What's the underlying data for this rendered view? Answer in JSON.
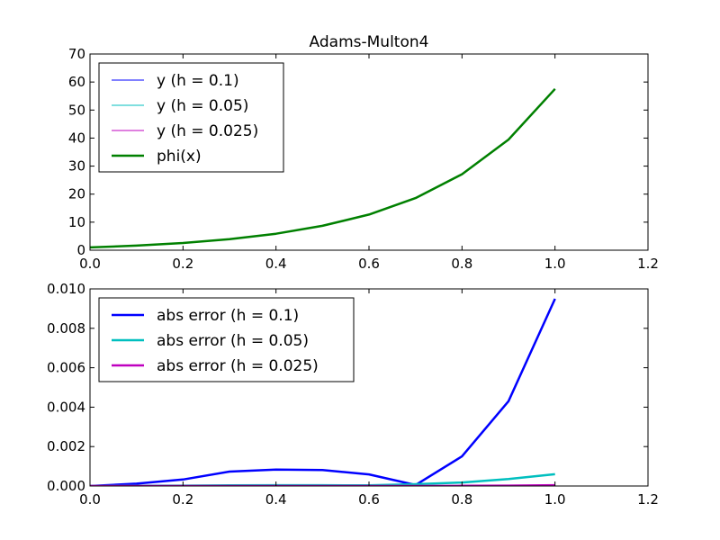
{
  "chart_data": [
    {
      "type": "line",
      "title": "Adams-Multon4",
      "xlabel": "",
      "ylabel": "",
      "xlim": [
        0.0,
        1.2
      ],
      "ylim": [
        0,
        70
      ],
      "xticks": [
        "0.0",
        "0.2",
        "0.4",
        "0.6",
        "0.8",
        "1.0",
        "1.2"
      ],
      "yticks": [
        "0",
        "10",
        "20",
        "30",
        "40",
        "50",
        "60",
        "70"
      ],
      "grid": false,
      "legend_position": "top-left",
      "series": [
        {
          "name": "y (h = 0.1)",
          "color": "#0000ff",
          "line_width": "thin",
          "x": [
            0.0,
            0.1,
            0.2,
            0.3,
            0.4,
            0.5,
            0.6,
            0.7,
            0.8,
            0.9,
            1.0
          ],
          "y": [
            1.0,
            1.63,
            2.56,
            3.93,
            5.88,
            8.69,
            12.73,
            18.58,
            27.09,
            39.47,
            57.53
          ]
        },
        {
          "name": "y (h = 0.05)",
          "color": "#00bfbf",
          "line_width": "thin",
          "x": [
            0.0,
            0.1,
            0.2,
            0.3,
            0.4,
            0.5,
            0.6,
            0.7,
            0.8,
            0.9,
            1.0
          ],
          "y": [
            1.0,
            1.63,
            2.56,
            3.93,
            5.88,
            8.69,
            12.73,
            18.58,
            27.09,
            39.47,
            57.53
          ]
        },
        {
          "name": "y (h = 0.025)",
          "color": "#bf00bf",
          "line_width": "thin",
          "x": [
            0.0,
            0.1,
            0.2,
            0.3,
            0.4,
            0.5,
            0.6,
            0.7,
            0.8,
            0.9,
            1.0
          ],
          "y": [
            1.0,
            1.63,
            2.56,
            3.93,
            5.88,
            8.69,
            12.73,
            18.58,
            27.09,
            39.47,
            57.53
          ]
        },
        {
          "name": "phi(x)",
          "color": "#008000",
          "line_width": "thick",
          "x": [
            0.0,
            0.1,
            0.2,
            0.3,
            0.4,
            0.5,
            0.6,
            0.7,
            0.8,
            0.9,
            1.0
          ],
          "y": [
            1.0,
            1.63,
            2.56,
            3.93,
            5.88,
            8.69,
            12.73,
            18.58,
            27.09,
            39.47,
            57.53
          ]
        }
      ]
    },
    {
      "type": "line",
      "title": "",
      "xlabel": "",
      "ylabel": "",
      "xlim": [
        0.0,
        1.2
      ],
      "ylim": [
        0.0,
        0.01
      ],
      "xticks": [
        "0.0",
        "0.2",
        "0.4",
        "0.6",
        "0.8",
        "1.0",
        "1.2"
      ],
      "yticks": [
        "0.000",
        "0.002",
        "0.004",
        "0.006",
        "0.008",
        "0.010"
      ],
      "grid": false,
      "legend_position": "top-left",
      "series": [
        {
          "name": "abs error (h = 0.1)",
          "color": "#0000ff",
          "line_width": "thick",
          "x": [
            0.0,
            0.1,
            0.2,
            0.3,
            0.4,
            0.5,
            0.6,
            0.7,
            0.8,
            0.9,
            1.0
          ],
          "y": [
            0.0,
            0.00012,
            0.00033,
            0.00073,
            0.00083,
            0.00081,
            0.00059,
            5e-05,
            0.0015,
            0.0043,
            0.0095
          ]
        },
        {
          "name": "abs error (h = 0.05)",
          "color": "#00bfbf",
          "line_width": "thick",
          "x": [
            0.0,
            0.1,
            0.2,
            0.3,
            0.4,
            0.5,
            0.6,
            0.7,
            0.8,
            0.9,
            1.0
          ],
          "y": [
            0.0,
            1e-05,
            2e-05,
            3e-05,
            4e-05,
            4e-05,
            3e-05,
            9e-05,
            0.00018,
            0.00035,
            0.0006
          ]
        },
        {
          "name": "abs error (h = 0.025)",
          "color": "#bf00bf",
          "line_width": "thick",
          "x": [
            0.0,
            0.1,
            0.2,
            0.3,
            0.4,
            0.5,
            0.6,
            0.7,
            0.8,
            0.9,
            1.0
          ],
          "y": [
            0.0,
            0.0,
            0.0,
            0.0,
            0.0,
            0.0,
            0.0,
            0.0,
            1e-05,
            2e-05,
            4e-05
          ]
        }
      ]
    }
  ]
}
